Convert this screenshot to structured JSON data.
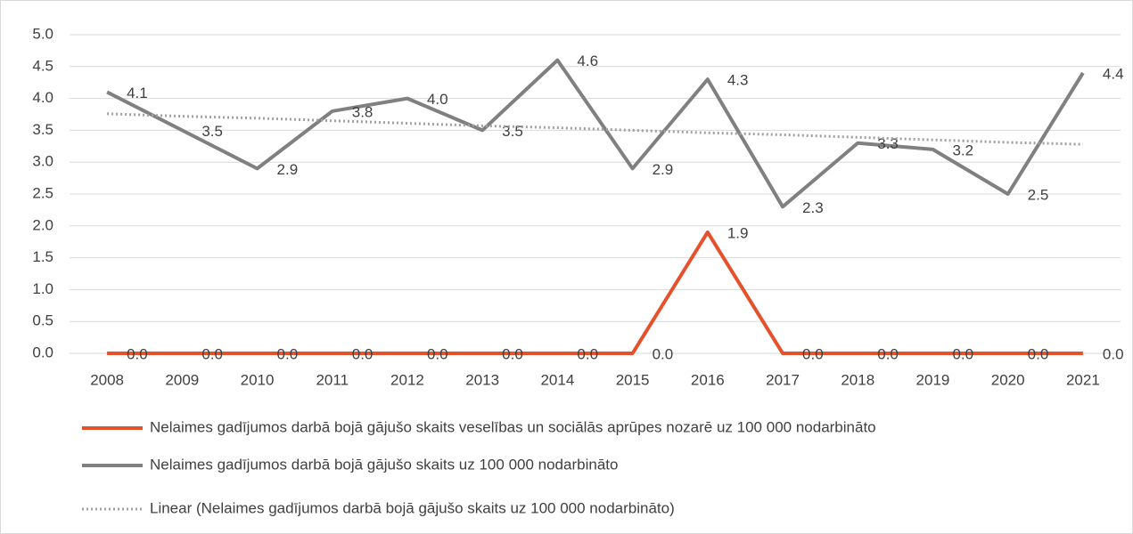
{
  "chart_data": {
    "type": "line",
    "categories": [
      "2008",
      "2009",
      "2010",
      "2011",
      "2012",
      "2013",
      "2014",
      "2015",
      "2016",
      "2017",
      "2018",
      "2019",
      "2020",
      "2021"
    ],
    "series": [
      {
        "name": "Nelaimes gadījumos darbā bojā gājušo skaits veselības un sociālās aprūpes nozarē uz 100 000 nodarbināto",
        "color": "#e5512a",
        "width": 4,
        "style": "solid",
        "values": [
          0,
          0,
          0,
          0,
          0,
          0,
          0,
          0,
          1.9,
          0,
          0,
          0,
          0,
          0
        ],
        "value_labels": [
          "0.0",
          "0.0",
          "0.0",
          "0.0",
          "0.0",
          "0.0",
          "0.0",
          "0.0",
          "1.9",
          "0.0",
          "0.0",
          "0.0",
          "0.0",
          "0.0"
        ]
      },
      {
        "name": "Nelaimes gadījumos darbā bojā gājušo skaits uz 100 000 nodarbināto",
        "color": "#808080",
        "width": 4,
        "style": "solid",
        "values": [
          4.1,
          3.5,
          2.9,
          3.8,
          4.0,
          3.5,
          4.6,
          2.9,
          4.3,
          2.3,
          3.3,
          3.2,
          2.5,
          4.4
        ],
        "value_labels": [
          "4.1",
          "3.5",
          "2.9",
          "3.8",
          "4.0",
          "3.5",
          "4.6",
          "2.9",
          "4.3",
          "2.3",
          "3.3",
          "3.2",
          "2.5",
          "4.4"
        ]
      },
      {
        "name": "Linear (Nelaimes gadījumos darbā bojā gājušo skaits uz 100 000 nodarbināto)",
        "color": "#a0a0a0",
        "width": 3,
        "style": "dotted",
        "values": [
          3.76,
          3.72,
          3.69,
          3.65,
          3.61,
          3.57,
          3.54,
          3.5,
          3.46,
          3.43,
          3.39,
          3.35,
          3.31,
          3.28
        ]
      }
    ],
    "ylim": [
      0,
      5
    ],
    "yticks": [
      {
        "value": 0,
        "label": "0.0"
      },
      0.5,
      {
        "value": 1,
        "label": "1.0"
      },
      1.5,
      {
        "value": 2,
        "label": "2.0"
      },
      2.5,
      {
        "value": 3,
        "label": "3.0"
      },
      3.5,
      {
        "value": 4,
        "label": "4.0"
      },
      4.5,
      {
        "value": 5,
        "label": "5.0"
      }
    ],
    "grid": true,
    "legend": "bottom"
  }
}
